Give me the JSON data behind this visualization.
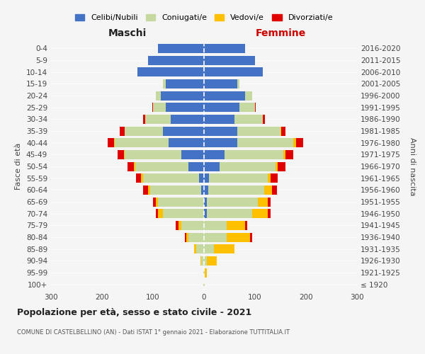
{
  "age_groups": [
    "100+",
    "95-99",
    "90-94",
    "85-89",
    "80-84",
    "75-79",
    "70-74",
    "65-69",
    "60-64",
    "55-59",
    "50-54",
    "45-49",
    "40-44",
    "35-39",
    "30-34",
    "25-29",
    "20-24",
    "15-19",
    "10-14",
    "5-9",
    "0-4"
  ],
  "birth_years": [
    "≤ 1920",
    "1921-1925",
    "1926-1930",
    "1931-1935",
    "1936-1940",
    "1941-1945",
    "1946-1950",
    "1951-1955",
    "1956-1960",
    "1961-1965",
    "1966-1970",
    "1971-1975",
    "1976-1980",
    "1981-1985",
    "1986-1990",
    "1991-1995",
    "1996-2000",
    "2001-2005",
    "2006-2010",
    "2011-2015",
    "2016-2020"
  ],
  "maschi": {
    "celibi": [
      0,
      0,
      0,
      0,
      0,
      0,
      0,
      0,
      5,
      10,
      30,
      45,
      70,
      80,
      65,
      75,
      85,
      75,
      130,
      110,
      90
    ],
    "coniugati": [
      1,
      2,
      5,
      15,
      30,
      45,
      80,
      90,
      100,
      110,
      105,
      110,
      105,
      75,
      50,
      25,
      10,
      5,
      0,
      0,
      0
    ],
    "vedovi": [
      0,
      0,
      2,
      5,
      5,
      5,
      10,
      5,
      5,
      3,
      3,
      2,
      2,
      0,
      0,
      0,
      0,
      0,
      0,
      0,
      0
    ],
    "divorziati": [
      0,
      0,
      0,
      0,
      2,
      5,
      5,
      5,
      10,
      10,
      12,
      12,
      12,
      10,
      5,
      2,
      0,
      0,
      0,
      0,
      0
    ]
  },
  "femmine": {
    "nubili": [
      0,
      0,
      0,
      0,
      0,
      0,
      5,
      5,
      8,
      10,
      30,
      40,
      65,
      65,
      60,
      70,
      80,
      65,
      115,
      100,
      80
    ],
    "coniugate": [
      1,
      2,
      5,
      20,
      45,
      45,
      90,
      100,
      110,
      115,
      110,
      115,
      110,
      85,
      55,
      30,
      15,
      5,
      0,
      0,
      0
    ],
    "vedove": [
      1,
      3,
      20,
      40,
      45,
      35,
      30,
      20,
      15,
      5,
      5,
      5,
      5,
      2,
      0,
      0,
      0,
      0,
      0,
      0,
      0
    ],
    "divorziate": [
      0,
      0,
      0,
      0,
      5,
      5,
      5,
      5,
      10,
      15,
      15,
      15,
      15,
      8,
      5,
      2,
      0,
      0,
      0,
      0,
      0
    ]
  },
  "color_celibi": "#4472c4",
  "color_coniugati": "#c5d9a0",
  "color_vedovi": "#ffc000",
  "color_divorziati": "#e00000",
  "title": "Popolazione per età, sesso e stato civile - 2021",
  "subtitle": "COMUNE DI CASTELBELLINO (AN) - Dati ISTAT 1° gennaio 2021 - Elaborazione TUTTITALIA.IT",
  "xlabel_left": "Maschi",
  "xlabel_right": "Femmine",
  "ylabel_left": "Fasce di età",
  "ylabel_right": "Anni di nascita",
  "xlim": 300,
  "bg_color": "#f5f5f5",
  "legend_labels": [
    "Celibi/Nubili",
    "Coniugati/e",
    "Vedovi/e",
    "Divorziati/e"
  ]
}
